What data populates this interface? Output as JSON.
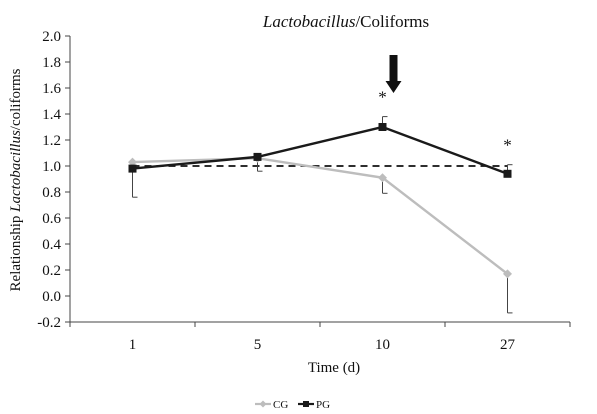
{
  "chart_data": {
    "type": "line",
    "title_italic": "Lactobacillus",
    "title_rest": "/Coliforms",
    "ylabel_pre": "Relationship ",
    "ylabel_italic": "Lactobacillus",
    "ylabel_post": "/coliforms",
    "xlabel": "Time (d)",
    "categories": [
      "1",
      "5",
      "10",
      "27"
    ],
    "ylim": [
      -0.2,
      2.0
    ],
    "yticks": [
      "2.0",
      "1.8",
      "1.6",
      "1.4",
      "1.2",
      "1.0",
      "0.8",
      "0.6",
      "0.4",
      "0.2",
      "0.0",
      "-0.2"
    ],
    "reference_line": 1.0,
    "series": [
      {
        "name": "CG",
        "color": "#bdbdbd",
        "marker": "diamond",
        "values": [
          1.03,
          1.06,
          0.91,
          0.17
        ],
        "error_lower": [
          0.04,
          0.1,
          0.12,
          0.3
        ],
        "error_upper": [
          0,
          0,
          0,
          0
        ]
      },
      {
        "name": "PG",
        "color": "#1a1a1a",
        "marker": "square",
        "values": [
          0.98,
          1.07,
          1.3,
          0.94
        ],
        "error_lower": [
          0.22,
          0.0,
          0.0,
          0.0
        ],
        "error_upper": [
          0.0,
          0.0,
          0.08,
          0.07
        ]
      }
    ],
    "annotations": {
      "asterisk": "*",
      "asterisk_at": [
        "10",
        "27"
      ],
      "arrow_at": "10"
    },
    "legend": {
      "placement": "bottom-center",
      "items": [
        "CG",
        "PG"
      ]
    }
  }
}
